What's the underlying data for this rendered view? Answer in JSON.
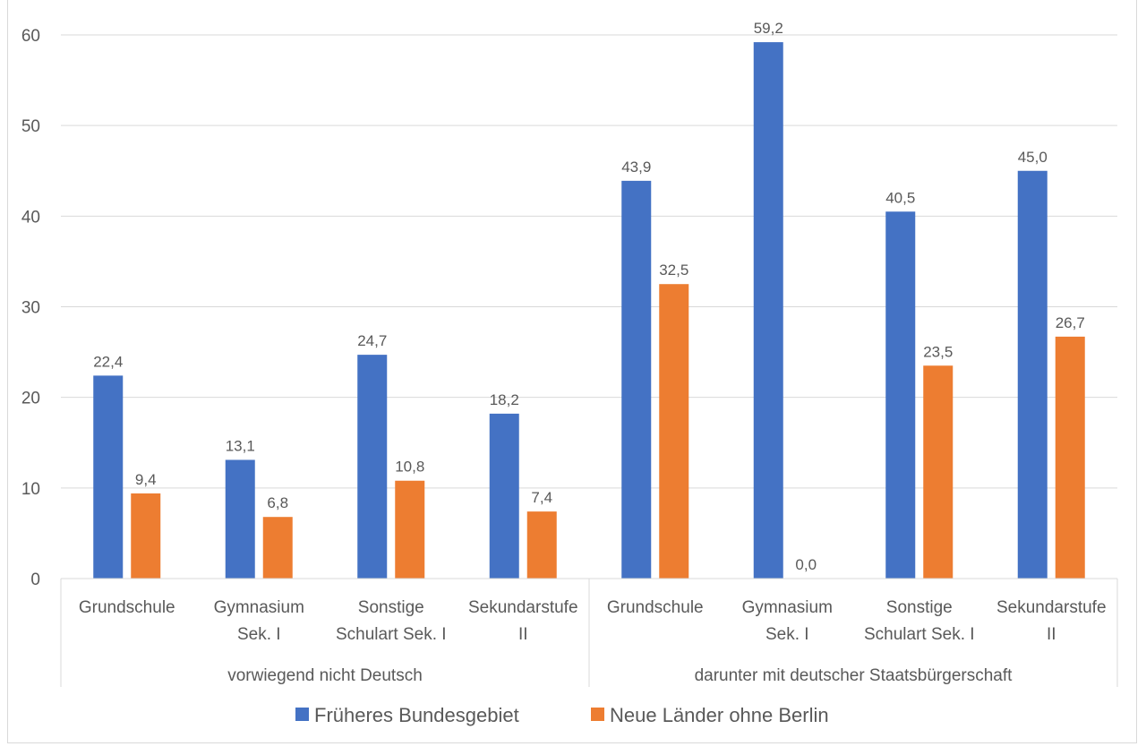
{
  "chart_data": {
    "type": "bar",
    "groups": [
      {
        "label": "vorwiegend nicht Deutsch",
        "categories": [
          [
            "Grundschule"
          ],
          [
            "Gymnasium",
            "Sek. I"
          ],
          [
            "Sonstige",
            "Schulart Sek. I"
          ],
          [
            "Sekundarstufe",
            "II"
          ]
        ]
      },
      {
        "label": "darunter mit deutscher Staatsbürgerschaft",
        "categories": [
          [
            "Grundschule"
          ],
          [
            "Gymnasium",
            "Sek. I"
          ],
          [
            "Sonstige",
            "Schulart Sek. I"
          ],
          [
            "Sekundarstufe",
            "II"
          ]
        ]
      }
    ],
    "series": [
      {
        "name": "Früheres Bundesgebiet",
        "color": "#4472c4",
        "values": [
          22.4,
          13.1,
          24.7,
          18.2,
          43.9,
          59.2,
          40.5,
          45.0
        ],
        "labels": [
          "22,4",
          "13,1",
          "24,7",
          "18,2",
          "43,9",
          "59,2",
          "40,5",
          "45,0"
        ]
      },
      {
        "name": "Neue Länder ohne Berlin",
        "color": "#ed7d31",
        "values": [
          9.4,
          6.8,
          10.8,
          7.4,
          32.5,
          0.0,
          23.5,
          26.7
        ],
        "labels": [
          "9,4",
          "6,8",
          "10,8",
          "7,4",
          "32,5",
          "0,0",
          "23,5",
          "26,7"
        ]
      }
    ],
    "yticks": [
      "0",
      "10",
      "20",
      "30",
      "40",
      "50",
      "60"
    ],
    "ylim": [
      0,
      60
    ],
    "grid": true,
    "legend": "bottom",
    "title": "",
    "xlabel": "",
    "ylabel": ""
  }
}
